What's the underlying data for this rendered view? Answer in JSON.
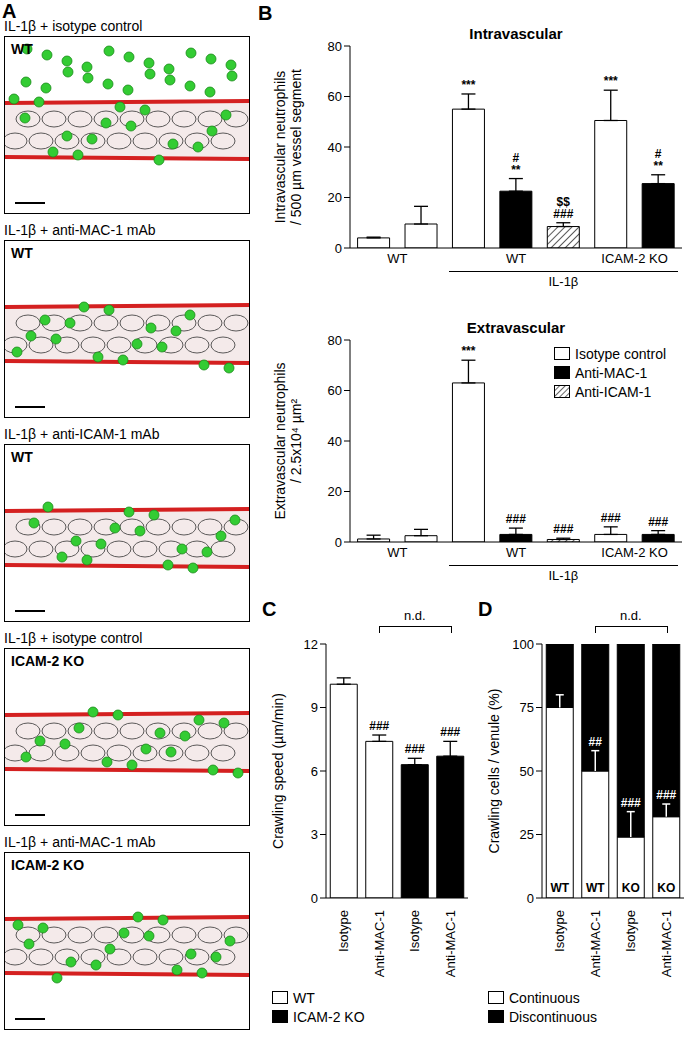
{
  "panel_A": {
    "label": "A",
    "images": [
      {
        "title": "IL-1β + isotype control",
        "genotype": "WT"
      },
      {
        "title": "IL-1β + anti-MAC-1 mAb",
        "genotype": "WT"
      },
      {
        "title": "IL-1β + anti-ICAM-1 mAb",
        "genotype": "WT"
      },
      {
        "title": "IL-1β + isotype control",
        "genotype": "ICAM-2 KO"
      },
      {
        "title": "IL-1β + anti-MAC-1 mAb",
        "genotype": "ICAM-2 KO"
      }
    ]
  },
  "chart_data": [
    {
      "panel": "B",
      "type": "bar",
      "title": "Intravascular",
      "ylabel": [
        "Intravascular neutrophils",
        "/ 500 µm vessel segment"
      ],
      "categories": [
        null,
        null,
        null,
        null,
        null,
        null,
        null
      ],
      "values": [
        4,
        9.5,
        55,
        22.5,
        8.5,
        50.5,
        25.5
      ],
      "errors": [
        0.3,
        7,
        6,
        5,
        1.5,
        12,
        3.5
      ],
      "series": [
        {
          "name": "Isotype control",
          "color": "#ffffff",
          "line_style": "solid"
        },
        {
          "name": "Anti-MAC-1",
          "color": "#000000",
          "line_style": "solid"
        },
        {
          "name": "Anti-ICAM-1",
          "color": "#ffffff",
          "line_style": "hatched"
        }
      ],
      "bar_series": [
        "Isotype control",
        "Isotype control",
        "Isotype control",
        "Anti-MAC-1",
        "Anti-ICAM-1",
        "Isotype control",
        "Anti-MAC-1"
      ],
      "bar_annotations": [
        [],
        [],
        [
          "***"
        ],
        [
          "#",
          "**"
        ],
        [
          "$$",
          "###"
        ],
        [
          "***"
        ],
        [
          "#",
          "**"
        ]
      ],
      "groups": [
        {
          "label": "WT",
          "from": 0,
          "to": 1,
          "level": 1
        },
        {
          "label": "WT",
          "from": 2,
          "to": 4,
          "level": 1
        },
        {
          "label": "ICAM-2 KO",
          "from": 5,
          "to": 6,
          "level": 1
        },
        {
          "label": "IL-1β",
          "from": 2,
          "to": 6,
          "level": 2
        }
      ],
      "ylim": [
        0,
        80
      ],
      "yticks": [
        0,
        20,
        40,
        60,
        80
      ]
    },
    {
      "type": "bar",
      "title": "Extravascular",
      "ylabel": [
        "Extravascular neutrophils",
        "/ 2.5x10⁴ µm²"
      ],
      "categories": [
        null,
        null,
        null,
        null,
        null,
        null,
        null
      ],
      "values": [
        1.2,
        2.5,
        63,
        3,
        1,
        3,
        3
      ],
      "errors": [
        1.5,
        2.5,
        9,
        2.5,
        0.5,
        3,
        1.5
      ],
      "series": [
        {
          "name": "Isotype control",
          "color": "#ffffff",
          "line_style": "solid"
        },
        {
          "name": "Anti-MAC-1",
          "color": "#000000",
          "line_style": "solid"
        },
        {
          "name": "Anti-ICAM-1",
          "color": "#ffffff",
          "line_style": "hatched"
        }
      ],
      "bar_series": [
        "Isotype control",
        "Isotype control",
        "Isotype control",
        "Anti-MAC-1",
        "Anti-ICAM-1",
        "Isotype control",
        "Anti-MAC-1"
      ],
      "bar_annotations": [
        [],
        [],
        [
          "***"
        ],
        [
          "###"
        ],
        [
          "###"
        ],
        [
          "###"
        ],
        [
          "###"
        ]
      ],
      "groups": [
        {
          "label": "WT",
          "from": 0,
          "to": 1,
          "level": 1
        },
        {
          "label": "WT",
          "from": 2,
          "to": 4,
          "level": 1
        },
        {
          "label": "ICAM-2 KO",
          "from": 5,
          "to": 6,
          "level": 1
        },
        {
          "label": "IL-1β",
          "from": 2,
          "to": 6,
          "level": 2
        }
      ],
      "legend": "upper right",
      "ylim": [
        0,
        80
      ],
      "yticks": [
        0,
        20,
        40,
        60,
        80
      ]
    },
    {
      "panel": "C",
      "type": "bar",
      "ylabel": [
        "Crawling speed (µm/min)"
      ],
      "categories": [
        "Isotype",
        "Anti-MAC-1",
        "Isotype",
        "Anti-MAC-1"
      ],
      "values": [
        10.1,
        7.4,
        6.3,
        6.7
      ],
      "errors": [
        0.3,
        0.3,
        0.3,
        0.7
      ],
      "series": [
        {
          "name": "WT",
          "color": "#ffffff",
          "line_style": "solid"
        },
        {
          "name": "ICAM-2 KO",
          "color": "#000000",
          "line_style": "solid"
        }
      ],
      "bar_series": [
        "WT",
        "WT",
        "ICAM-2 KO",
        "ICAM-2 KO"
      ],
      "bar_annotations": [
        [],
        [
          "###"
        ],
        [
          "###"
        ],
        [
          "###"
        ]
      ],
      "bracket": {
        "label": "n.d.",
        "from": 1,
        "to": 3
      },
      "legend": "bottom",
      "ylim": [
        0,
        12
      ],
      "yticks": [
        0,
        3,
        6,
        9,
        12
      ]
    },
    {
      "panel": "D",
      "type": "bar",
      "stacked": true,
      "ylabel": [
        "Crawling cells / venule (%)"
      ],
      "categories": [
        "Isotype",
        "Anti-MAC-1",
        "Isotype",
        "Anti-MAC-1"
      ],
      "series": [
        {
          "name": "Continuous",
          "color": "#ffffff",
          "values": [
            75,
            50,
            24,
            32
          ],
          "errors": [
            5,
            8,
            10,
            5
          ]
        },
        {
          "name": "Discontinuous",
          "color": "#000000",
          "values": [
            25,
            50,
            76,
            68
          ]
        }
      ],
      "bar_labels": [
        "WT",
        "WT",
        "KO",
        "KO"
      ],
      "bar_annotations": [
        [],
        [
          "##"
        ],
        [
          "###"
        ],
        [
          "###"
        ]
      ],
      "bracket": {
        "label": "n.d.",
        "from": 1,
        "to": 3
      },
      "legend": "bottom",
      "ylim": [
        0,
        100
      ],
      "yticks": [
        0,
        25,
        50,
        75,
        100
      ]
    }
  ]
}
